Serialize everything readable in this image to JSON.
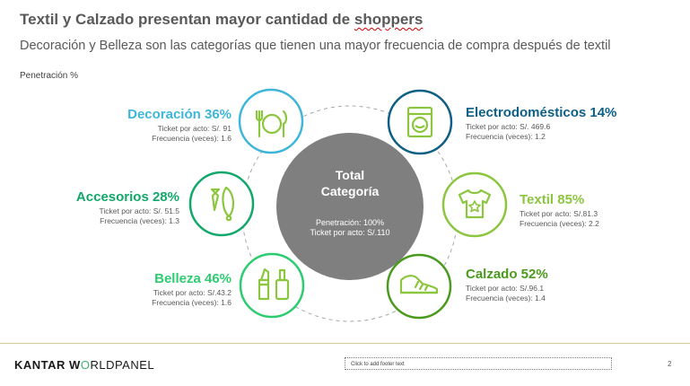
{
  "title": {
    "prefix": "Textil y Calzado presentan mayor cantidad de ",
    "squiggle": "shoppers"
  },
  "subtitle": "Decoración y Belleza son las categorías que tienen una mayor frecuencia de compra después de textil",
  "penetration_label": "Penetración %",
  "center": {
    "title_line1": "Total",
    "title_line2": "Categoría",
    "info_line1": "Penetración: 100%",
    "info_line2": "Ticket por acto: S/.110"
  },
  "categories": {
    "decoracion": {
      "head": "Decoración 36%",
      "ticket": "Ticket por acto: S/. 91",
      "freq": "Frecuencia (veces): 1.6",
      "color": "#3fb6d9",
      "icon": "fork-knife-plate-icon"
    },
    "accesorios": {
      "head": "Accesorios 28%",
      "ticket": "Ticket por acto: S/. 51.5",
      "freq": "Frecuencia (veces): 1.3",
      "color": "#12a86b",
      "icon": "tie-necklace-icon"
    },
    "belleza": {
      "head": "Belleza 46%",
      "ticket": "Ticket por acto: S/.43.2",
      "freq": "Frecuencia (veces): 1.6",
      "color": "#2ecc71",
      "icon": "lipstick-nailpolish-icon"
    },
    "electro": {
      "head": "Electrodomésticos 14%",
      "ticket": "Ticket por acto: S/. 469.6",
      "freq": "Frecuencia (veces): 1.2",
      "color": "#0e5f86",
      "icon": "washing-machine-icon"
    },
    "textil": {
      "head": "Textil 85%",
      "ticket": "Ticket por acto: S/.81.3",
      "freq": "Frecuencia (veces): 2.2",
      "color": "#8cc63f",
      "icon": "tshirt-star-icon"
    },
    "calzado": {
      "head": "Calzado 52%",
      "ticket": "Ticket por acto: S/.96.1",
      "freq": "Frecuencia (veces): 1.4",
      "color": "#4a9a1e",
      "icon": "sneaker-icon"
    }
  },
  "footer": {
    "logo_kantar": "KANTAR",
    "logo_w": "W",
    "logo_o": "O",
    "logo_rest": "RLDPANEL",
    "placeholder": "Click to add footer text",
    "page": "2"
  }
}
